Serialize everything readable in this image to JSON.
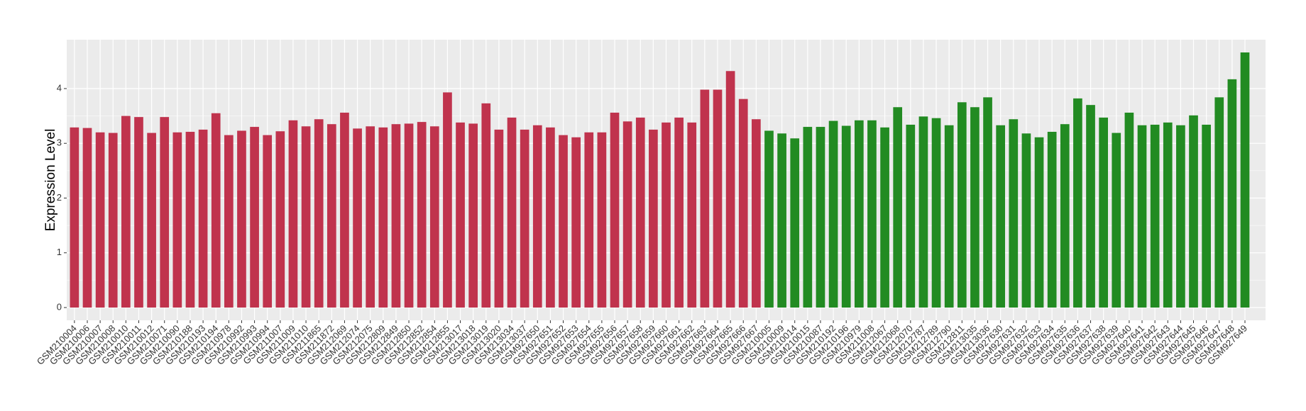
{
  "chart_data": {
    "type": "bar",
    "y_label": "Expression Level",
    "ylim": [
      -0.233,
      4.893
    ],
    "yticks": [
      0,
      1,
      2,
      3,
      4
    ],
    "grid": true,
    "background": "#ebebeb",
    "series": [
      {
        "color": "#c0334d",
        "categories": [
          "GSM210004",
          "GSM210006",
          "GSM210007",
          "GSM210008",
          "GSM210010",
          "GSM210011",
          "GSM210012",
          "GSM210071",
          "GSM210090",
          "GSM210188",
          "GSM210193",
          "GSM210194",
          "GSM210978",
          "GSM210992",
          "GSM210993",
          "GSM210994",
          "GSM211007",
          "GSM211009",
          "GSM211010",
          "GSM211865",
          "GSM211872",
          "GSM212069",
          "GSM212074",
          "GSM212075",
          "GSM212809",
          "GSM212849",
          "GSM212850",
          "GSM212852",
          "GSM212854",
          "GSM212855",
          "GSM213017",
          "GSM213018",
          "GSM213019",
          "GSM213020",
          "GSM213034",
          "GSM213037",
          "GSM927650",
          "GSM927651",
          "GSM927652",
          "GSM927653",
          "GSM927654",
          "GSM927655",
          "GSM927656",
          "GSM927657",
          "GSM927658",
          "GSM927659",
          "GSM927660",
          "GSM927661",
          "GSM927662",
          "GSM927663",
          "GSM927664",
          "GSM927665",
          "GSM927666",
          "GSM927667"
        ],
        "values": [
          3.29,
          3.28,
          3.2,
          3.19,
          3.5,
          3.48,
          3.19,
          3.48,
          3.2,
          3.21,
          3.25,
          3.55,
          3.15,
          3.23,
          3.3,
          3.15,
          3.22,
          3.42,
          3.31,
          3.44,
          3.35,
          3.56,
          3.27,
          3.31,
          3.29,
          3.35,
          3.36,
          3.39,
          3.31,
          3.93,
          3.38,
          3.36,
          3.73,
          3.25,
          3.47,
          3.25,
          3.33,
          3.29,
          3.15,
          3.11,
          3.2,
          3.2,
          3.56,
          3.4,
          3.47,
          3.25,
          3.38,
          3.47,
          3.38,
          3.98,
          3.98,
          4.32,
          3.81,
          3.44
        ]
      },
      {
        "color": "#228b22",
        "categories": [
          "GSM210005",
          "GSM210009",
          "GSM210014",
          "GSM210015",
          "GSM210087",
          "GSM210192",
          "GSM210196",
          "GSM210979",
          "GSM211008",
          "GSM212067",
          "GSM212068",
          "GSM212070",
          "GSM212787",
          "GSM212789",
          "GSM212790",
          "GSM212811",
          "GSM213035",
          "GSM213036",
          "GSM927630",
          "GSM927631",
          "GSM927632",
          "GSM927633",
          "GSM927634",
          "GSM927635",
          "GSM927636",
          "GSM927637",
          "GSM927638",
          "GSM927639",
          "GSM927640",
          "GSM927641",
          "GSM927642",
          "GSM927643",
          "GSM927644",
          "GSM927645",
          "GSM927646",
          "GSM927647",
          "GSM927648",
          "GSM927649"
        ],
        "values": [
          3.23,
          3.18,
          3.09,
          3.3,
          3.3,
          3.41,
          3.32,
          3.42,
          3.42,
          3.29,
          3.66,
          3.34,
          3.49,
          3.46,
          3.33,
          3.75,
          3.66,
          3.84,
          3.33,
          3.44,
          3.18,
          3.11,
          3.21,
          3.35,
          3.82,
          3.7,
          3.47,
          3.19,
          3.56,
          3.33,
          3.34,
          3.38,
          3.33,
          3.51,
          3.34,
          3.84,
          4.17,
          4.66
        ]
      }
    ]
  }
}
